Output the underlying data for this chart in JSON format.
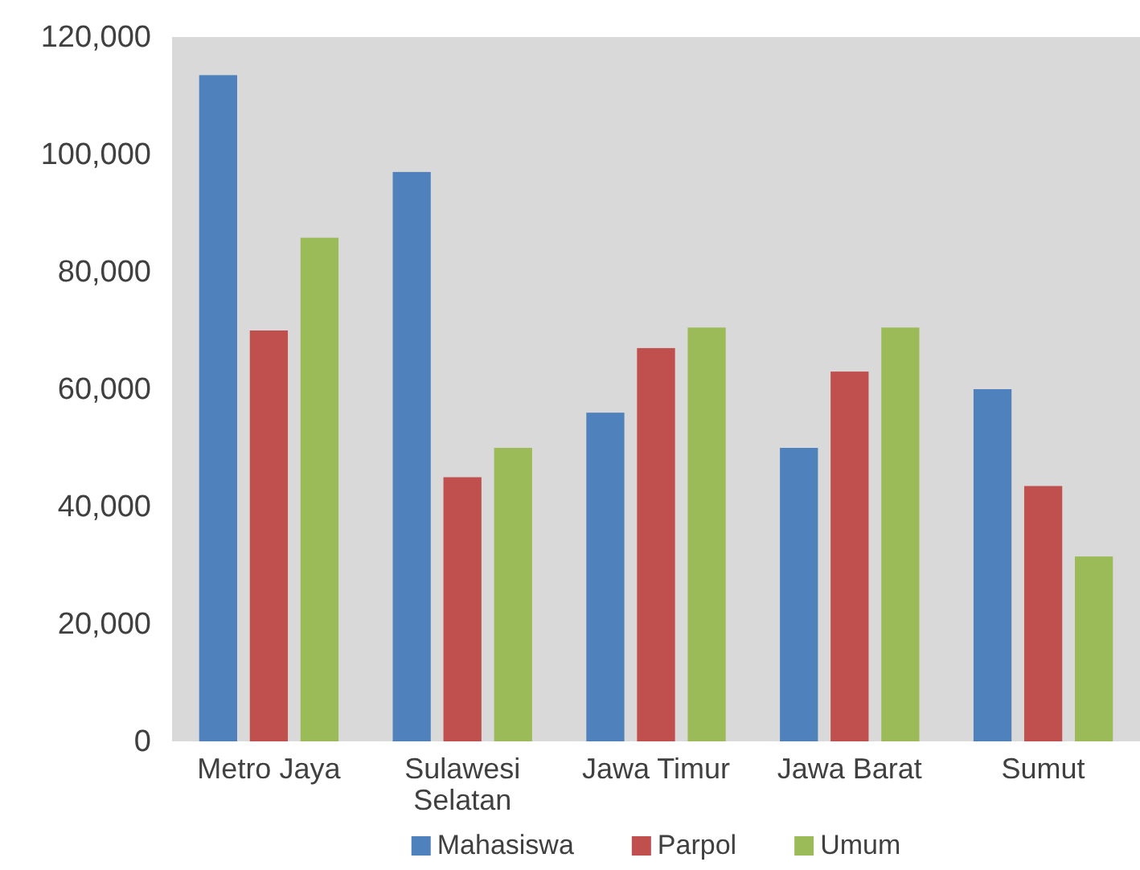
{
  "chart_data": {
    "type": "bar",
    "categories": [
      "Metro Jaya",
      "Sulawesi Selatan",
      "Jawa Timur",
      "Jawa Barat",
      "Sumut"
    ],
    "series": [
      {
        "name": "Mahasiswa",
        "color": "#4f81bd",
        "values": [
          113500,
          97000,
          56000,
          50000,
          60000
        ]
      },
      {
        "name": "Parpol",
        "color": "#c0504d",
        "values": [
          70000,
          45000,
          67000,
          63000,
          43500
        ]
      },
      {
        "name": "Umum",
        "color": "#9bbb59",
        "values": [
          85800,
          50000,
          70500,
          70500,
          31500
        ]
      }
    ],
    "ylim": [
      0,
      120000
    ],
    "yticks": [
      {
        "value": 0,
        "label": "0"
      },
      {
        "value": 20000,
        "label": "20,000"
      },
      {
        "value": 40000,
        "label": "40,000"
      },
      {
        "value": 60000,
        "label": "60,000"
      },
      {
        "value": 80000,
        "label": "80,000"
      },
      {
        "value": 100000,
        "label": "100,000"
      },
      {
        "value": 120000,
        "label": "120,000"
      }
    ],
    "grid": false,
    "legend": "bottom"
  }
}
